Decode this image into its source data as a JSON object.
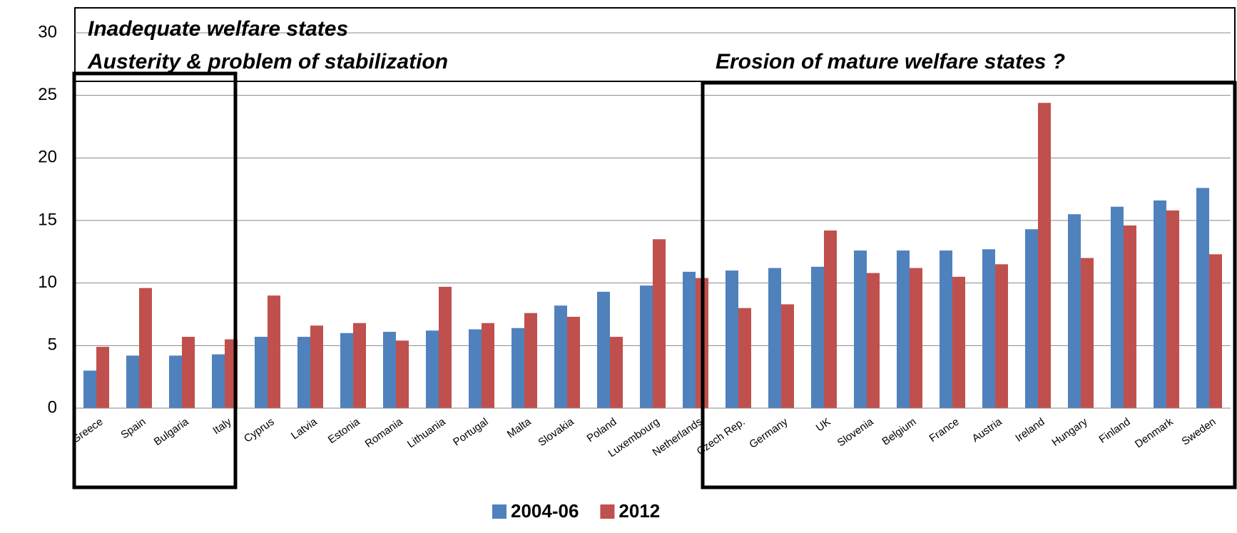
{
  "chart_data": {
    "type": "bar",
    "annotations": [
      "Inadequate welfare states",
      "Austerity & problem of stabilization",
      "Erosion of mature welfare states ?"
    ],
    "categories": [
      "Greece",
      "Spain",
      "Bulgaria",
      "Italy",
      "Cyprus",
      "Latvia",
      "Estonia",
      "Romania",
      "Lithuania",
      "Portugal",
      "Malta",
      "Slovakia",
      "Poland",
      "Luxembourg",
      "Netherlands",
      "Czech Rep.",
      "Germany",
      "UK",
      "Slovenia",
      "Belgium",
      "France",
      "Austria",
      "Ireland",
      "Hungary",
      "Finland",
      "Denmark",
      "Sweden"
    ],
    "series": [
      {
        "name": "2004-06",
        "color": "#4f81bd",
        "values": [
          3.0,
          4.2,
          4.2,
          4.3,
          5.7,
          5.7,
          6.0,
          6.1,
          6.2,
          6.3,
          6.4,
          8.2,
          9.3,
          9.8,
          10.9,
          11.0,
          11.2,
          11.3,
          12.6,
          12.6,
          12.6,
          12.7,
          14.3,
          15.5,
          16.1,
          16.6,
          17.6
        ]
      },
      {
        "name": "2012",
        "color": "#c0504d",
        "values": [
          4.9,
          9.6,
          5.7,
          5.5,
          9.0,
          6.6,
          6.8,
          5.4,
          9.7,
          6.8,
          7.6,
          7.3,
          5.7,
          13.5,
          10.4,
          8.0,
          8.3,
          14.2,
          10.8,
          11.2,
          10.5,
          11.5,
          24.4,
          12.0,
          14.6,
          15.8,
          12.3
        ]
      }
    ],
    "ylim": [
      0,
      30
    ],
    "yticks": [
      0,
      5,
      10,
      15,
      20,
      25,
      30
    ],
    "grid": true,
    "legend": "bottom"
  }
}
